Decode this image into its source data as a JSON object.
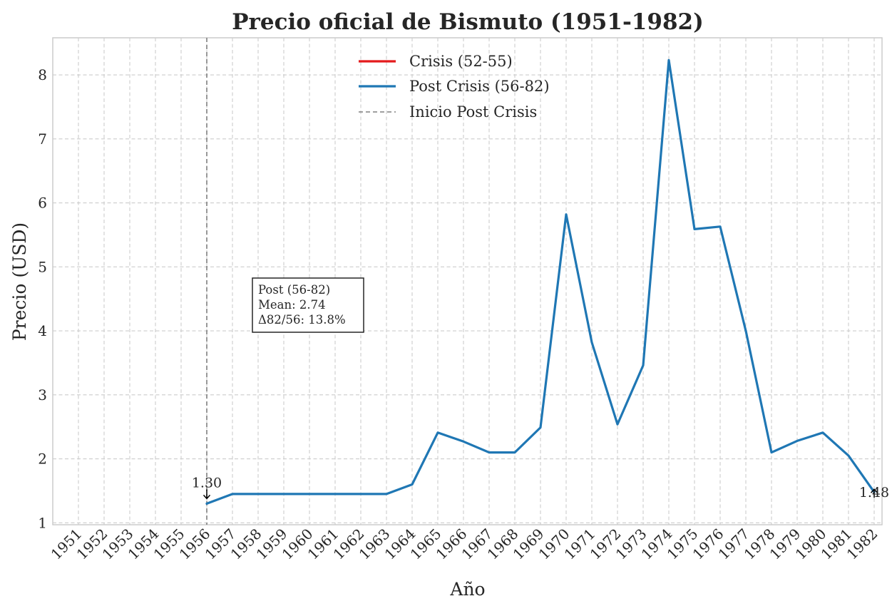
{
  "chart_data": {
    "type": "line",
    "title": "Precio oficial de Bismuto (1951-1982)",
    "xlabel": "Año",
    "ylabel": "Precio (USD)",
    "categories": [
      "1951",
      "1952",
      "1953",
      "1954",
      "1955",
      "1956",
      "1957",
      "1958",
      "1959",
      "1960",
      "1961",
      "1962",
      "1963",
      "1964",
      "1965",
      "1966",
      "1967",
      "1968",
      "1969",
      "1970",
      "1971",
      "1972",
      "1973",
      "1974",
      "1975",
      "1976",
      "1977",
      "1978",
      "1979",
      "1980",
      "1981",
      "1982"
    ],
    "xlim": [
      1951,
      1982
    ],
    "ylim": [
      0.97,
      8.58
    ],
    "yticks": [
      1,
      2,
      3,
      4,
      5,
      6,
      7,
      8
    ],
    "grid": true,
    "legend_position": "top-center",
    "series": [
      {
        "name": "Crisis (52-55)",
        "color": "#e41a1c",
        "x": [],
        "values": []
      },
      {
        "name": "Post Crisis (56-82)",
        "color": "#1f77b4",
        "x": [
          1956,
          1957,
          1958,
          1959,
          1960,
          1961,
          1962,
          1963,
          1964,
          1965,
          1966,
          1967,
          1968,
          1969,
          1970,
          1971,
          1972,
          1973,
          1974,
          1975,
          1976,
          1977,
          1978,
          1979,
          1980,
          1981,
          1982
        ],
        "values": [
          1.3,
          1.45,
          1.45,
          1.45,
          1.45,
          1.45,
          1.45,
          1.45,
          1.6,
          2.41,
          2.27,
          2.1,
          2.1,
          2.49,
          5.82,
          3.82,
          2.54,
          3.46,
          8.23,
          5.59,
          5.63,
          4.0,
          2.1,
          2.28,
          2.41,
          2.05,
          1.48
        ]
      }
    ],
    "vline": {
      "name": "Inicio Post Crisis",
      "x": 1956,
      "color": "#808080"
    },
    "annotations": [
      {
        "text": "1.30",
        "x": 1956,
        "y": 1.3
      },
      {
        "text": "1.48",
        "x": 1982,
        "y": 1.48
      }
    ],
    "stats_box": {
      "lines": [
        "Post (56-82)",
        "Mean: 2.74",
        "Δ82/56: 13.8%"
      ]
    }
  }
}
